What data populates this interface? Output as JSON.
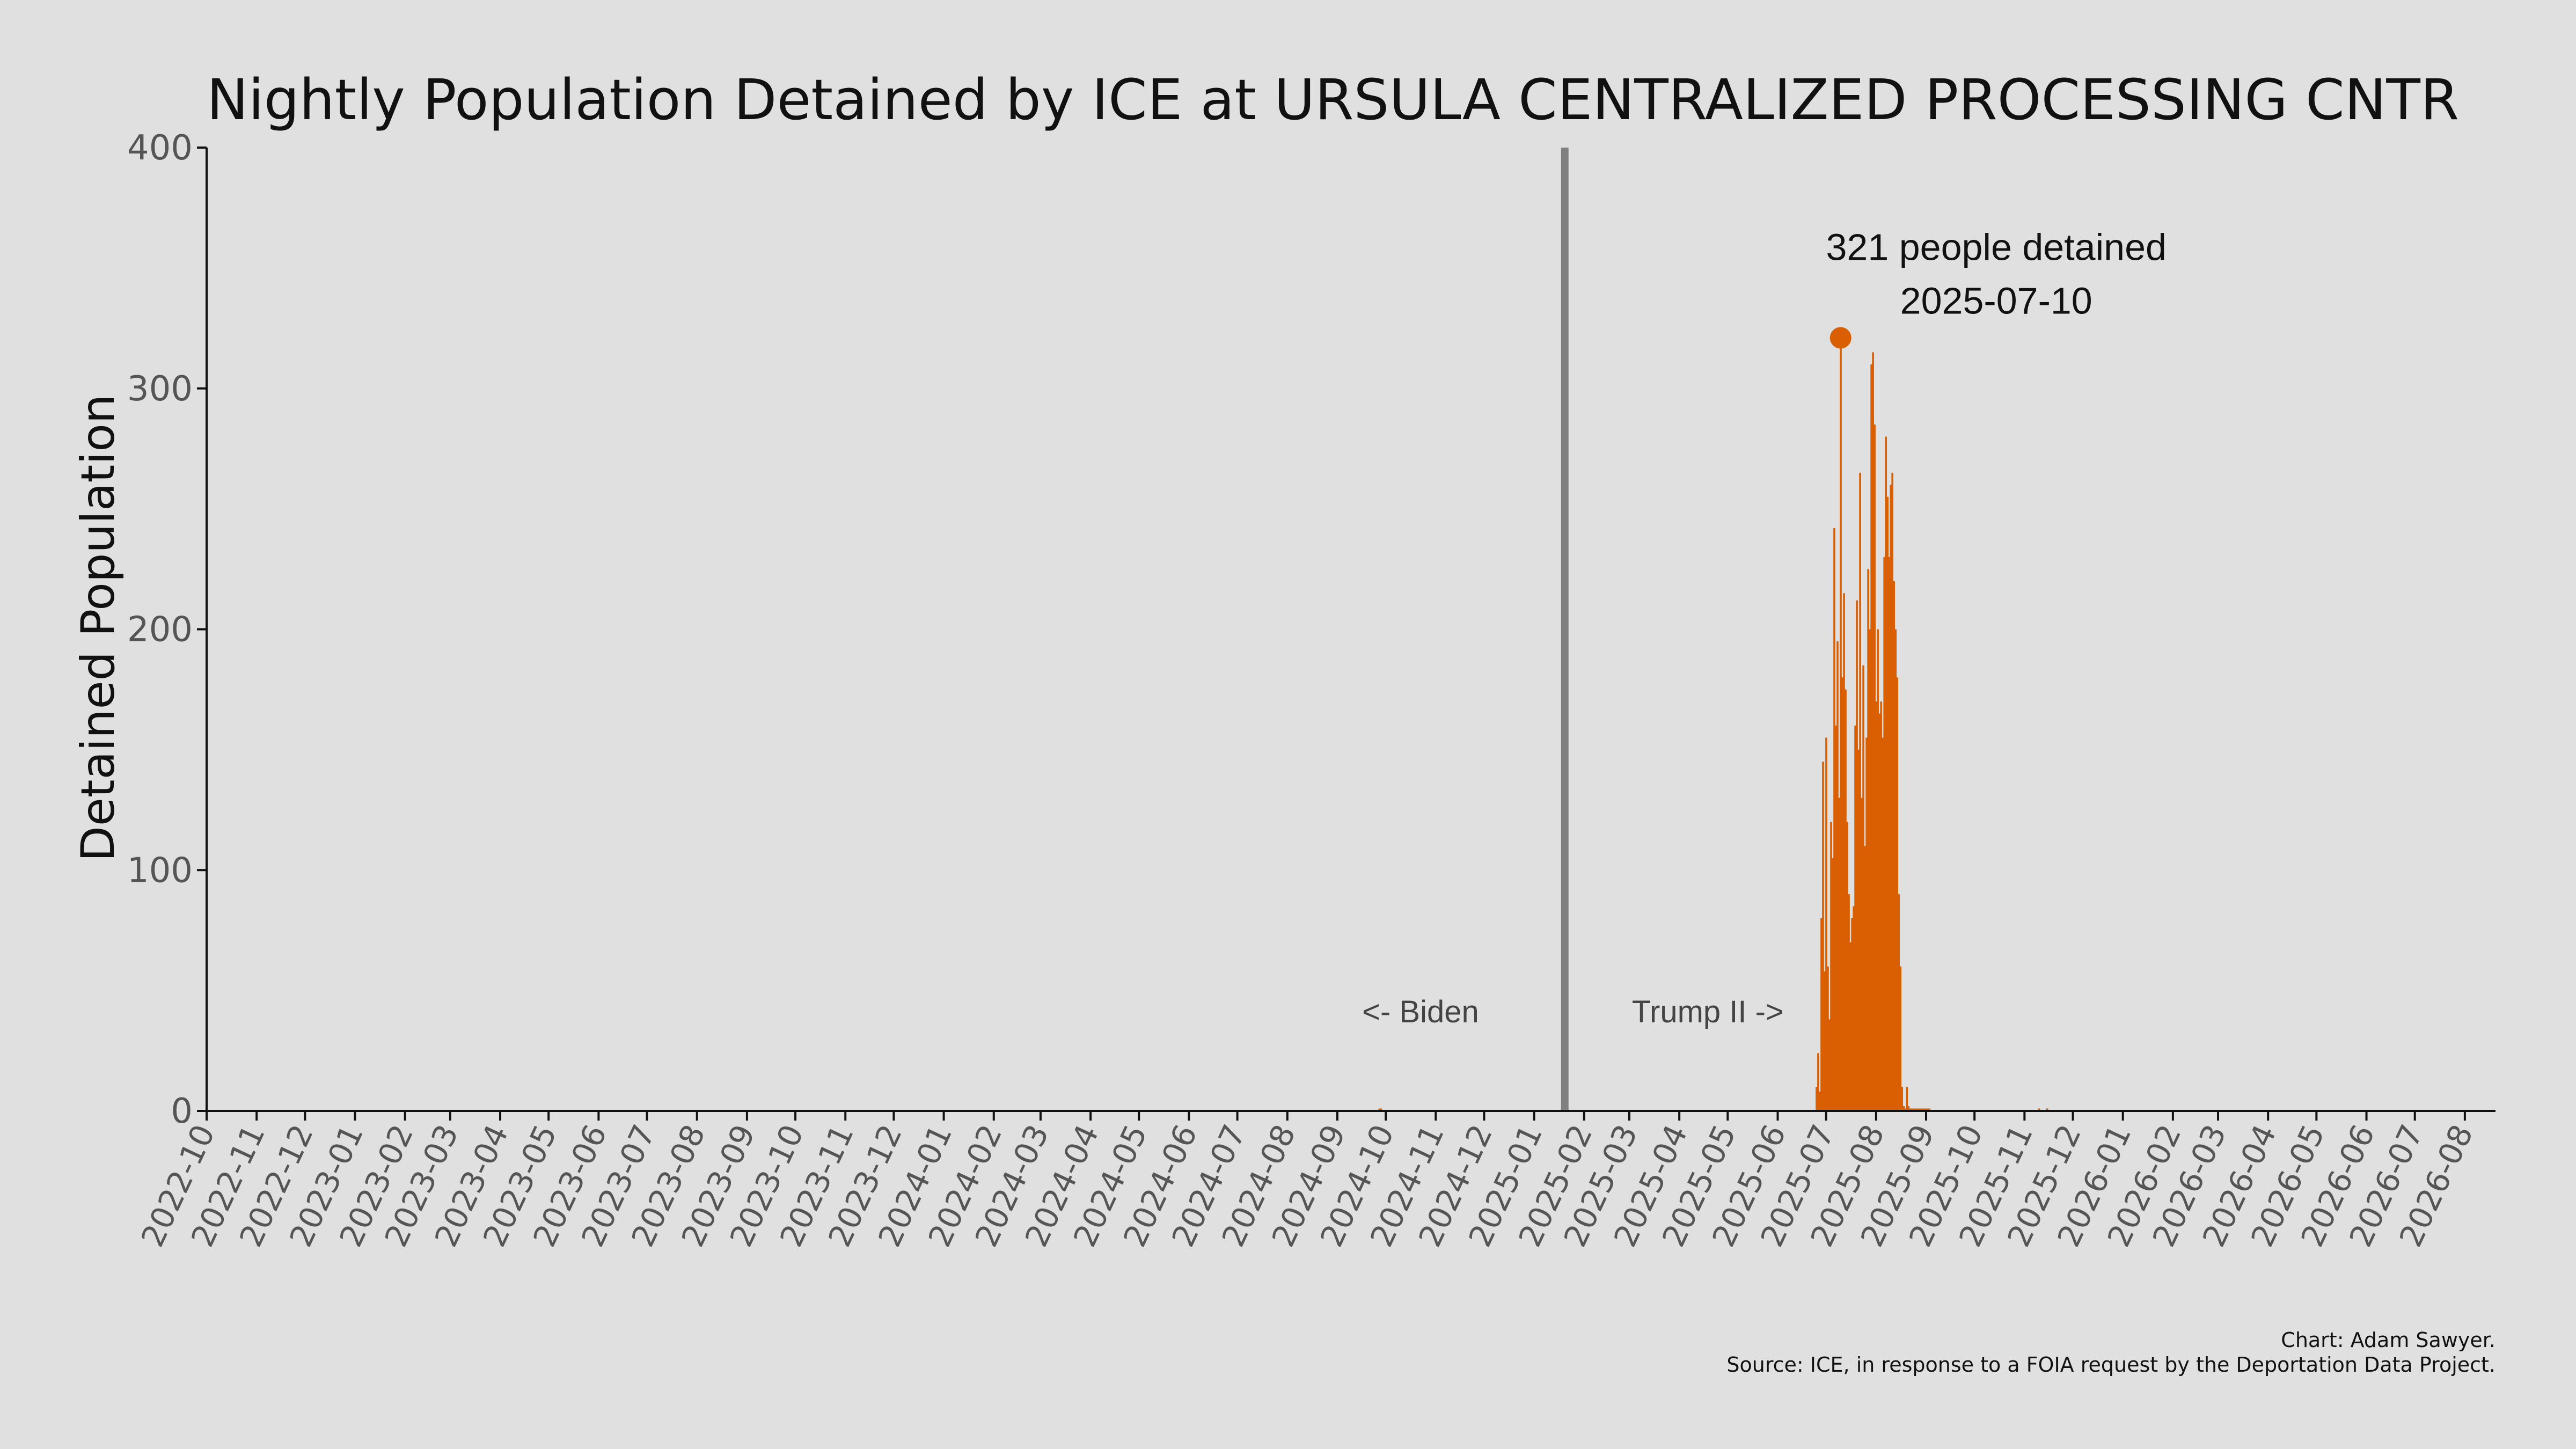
{
  "chart_data": {
    "type": "bar",
    "title": "Nightly Population Detained by ICE at URSULA CENTRALIZED PROCESSING CNTR",
    "ylabel": "Detained Population",
    "xlabel": "",
    "ylim": [
      0,
      400
    ],
    "yticks": [
      0,
      100,
      200,
      300,
      400
    ],
    "xlim": [
      "2022-10-01",
      "2026-08-20"
    ],
    "xtick_labels": [
      "2022-10",
      "2022-11",
      "2022-12",
      "2023-01",
      "2023-02",
      "2023-03",
      "2023-04",
      "2023-05",
      "2023-06",
      "2023-07",
      "2023-08",
      "2023-09",
      "2023-10",
      "2023-11",
      "2023-12",
      "2024-01",
      "2024-02",
      "2024-03",
      "2024-04",
      "2024-05",
      "2024-06",
      "2024-07",
      "2024-08",
      "2024-09",
      "2024-10",
      "2024-11",
      "2024-12",
      "2025-01",
      "2025-02",
      "2025-03",
      "2025-04",
      "2025-05",
      "2025-06",
      "2025-07",
      "2025-08",
      "2025-09",
      "2025-10",
      "2025-11",
      "2025-12",
      "2026-01",
      "2026-02",
      "2026-03",
      "2026-04",
      "2026-05",
      "2026-06",
      "2026-07",
      "2026-08"
    ],
    "grid": false,
    "color": "#d95f02",
    "series": [
      {
        "x": [
          "2024-09-27",
          "2024-09-28",
          "2025-06-25",
          "2025-06-26",
          "2025-06-27",
          "2025-06-28",
          "2025-06-29",
          "2025-06-30",
          "2025-07-01",
          "2025-07-02",
          "2025-07-03",
          "2025-07-04",
          "2025-07-05",
          "2025-07-06",
          "2025-07-07",
          "2025-07-08",
          "2025-07-09",
          "2025-07-10",
          "2025-07-11",
          "2025-07-12",
          "2025-07-13",
          "2025-07-14",
          "2025-07-15",
          "2025-07-16",
          "2025-07-17",
          "2025-07-18",
          "2025-07-19",
          "2025-07-20",
          "2025-07-21",
          "2025-07-22",
          "2025-07-23",
          "2025-07-24",
          "2025-07-25",
          "2025-07-26",
          "2025-07-27",
          "2025-07-28",
          "2025-07-29",
          "2025-07-30",
          "2025-07-31",
          "2025-08-01",
          "2025-08-02",
          "2025-08-03",
          "2025-08-04",
          "2025-08-05",
          "2025-08-06",
          "2025-08-07",
          "2025-08-08",
          "2025-08-09",
          "2025-08-10",
          "2025-08-11",
          "2025-08-12",
          "2025-08-13",
          "2025-08-14",
          "2025-08-15",
          "2025-08-16",
          "2025-08-17",
          "2025-08-18",
          "2025-08-19",
          "2025-08-20",
          "2025-08-21",
          "2025-08-22",
          "2025-08-23",
          "2025-08-24",
          "2025-08-25",
          "2025-08-26",
          "2025-08-27",
          "2025-08-28",
          "2025-08-29",
          "2025-08-30",
          "2025-08-31",
          "2025-09-01",
          "2025-09-02",
          "2025-09-03",
          "2025-11-10",
          "2025-11-15"
        ],
        "values": [
          1,
          1,
          10,
          24,
          8,
          80,
          145,
          58,
          155,
          60,
          38,
          120,
          105,
          242,
          160,
          195,
          130,
          321,
          180,
          215,
          175,
          120,
          90,
          70,
          80,
          85,
          160,
          212,
          150,
          265,
          130,
          185,
          110,
          155,
          225,
          200,
          310,
          315,
          285,
          170,
          200,
          165,
          170,
          155,
          230,
          280,
          255,
          230,
          260,
          265,
          220,
          200,
          180,
          90,
          60,
          10,
          2,
          1,
          10,
          2,
          1,
          1,
          1,
          1,
          1,
          1,
          1,
          1,
          1,
          1,
          1,
          1,
          1,
          1,
          1
        ]
      }
    ],
    "divider_date": "2025-01-20",
    "annotations": {
      "peak_date": "2025-07-10",
      "peak_value": 321,
      "peak_text": "321 people detained",
      "peak_date_text": "2025-07-10",
      "left_era": "<- Biden",
      "right_era": "Trump II ->"
    },
    "caption_line1": "Chart: Adam Sawyer.",
    "caption_line2": "Source: ICE, in response to a FOIA request by the Deportation Data Project."
  }
}
